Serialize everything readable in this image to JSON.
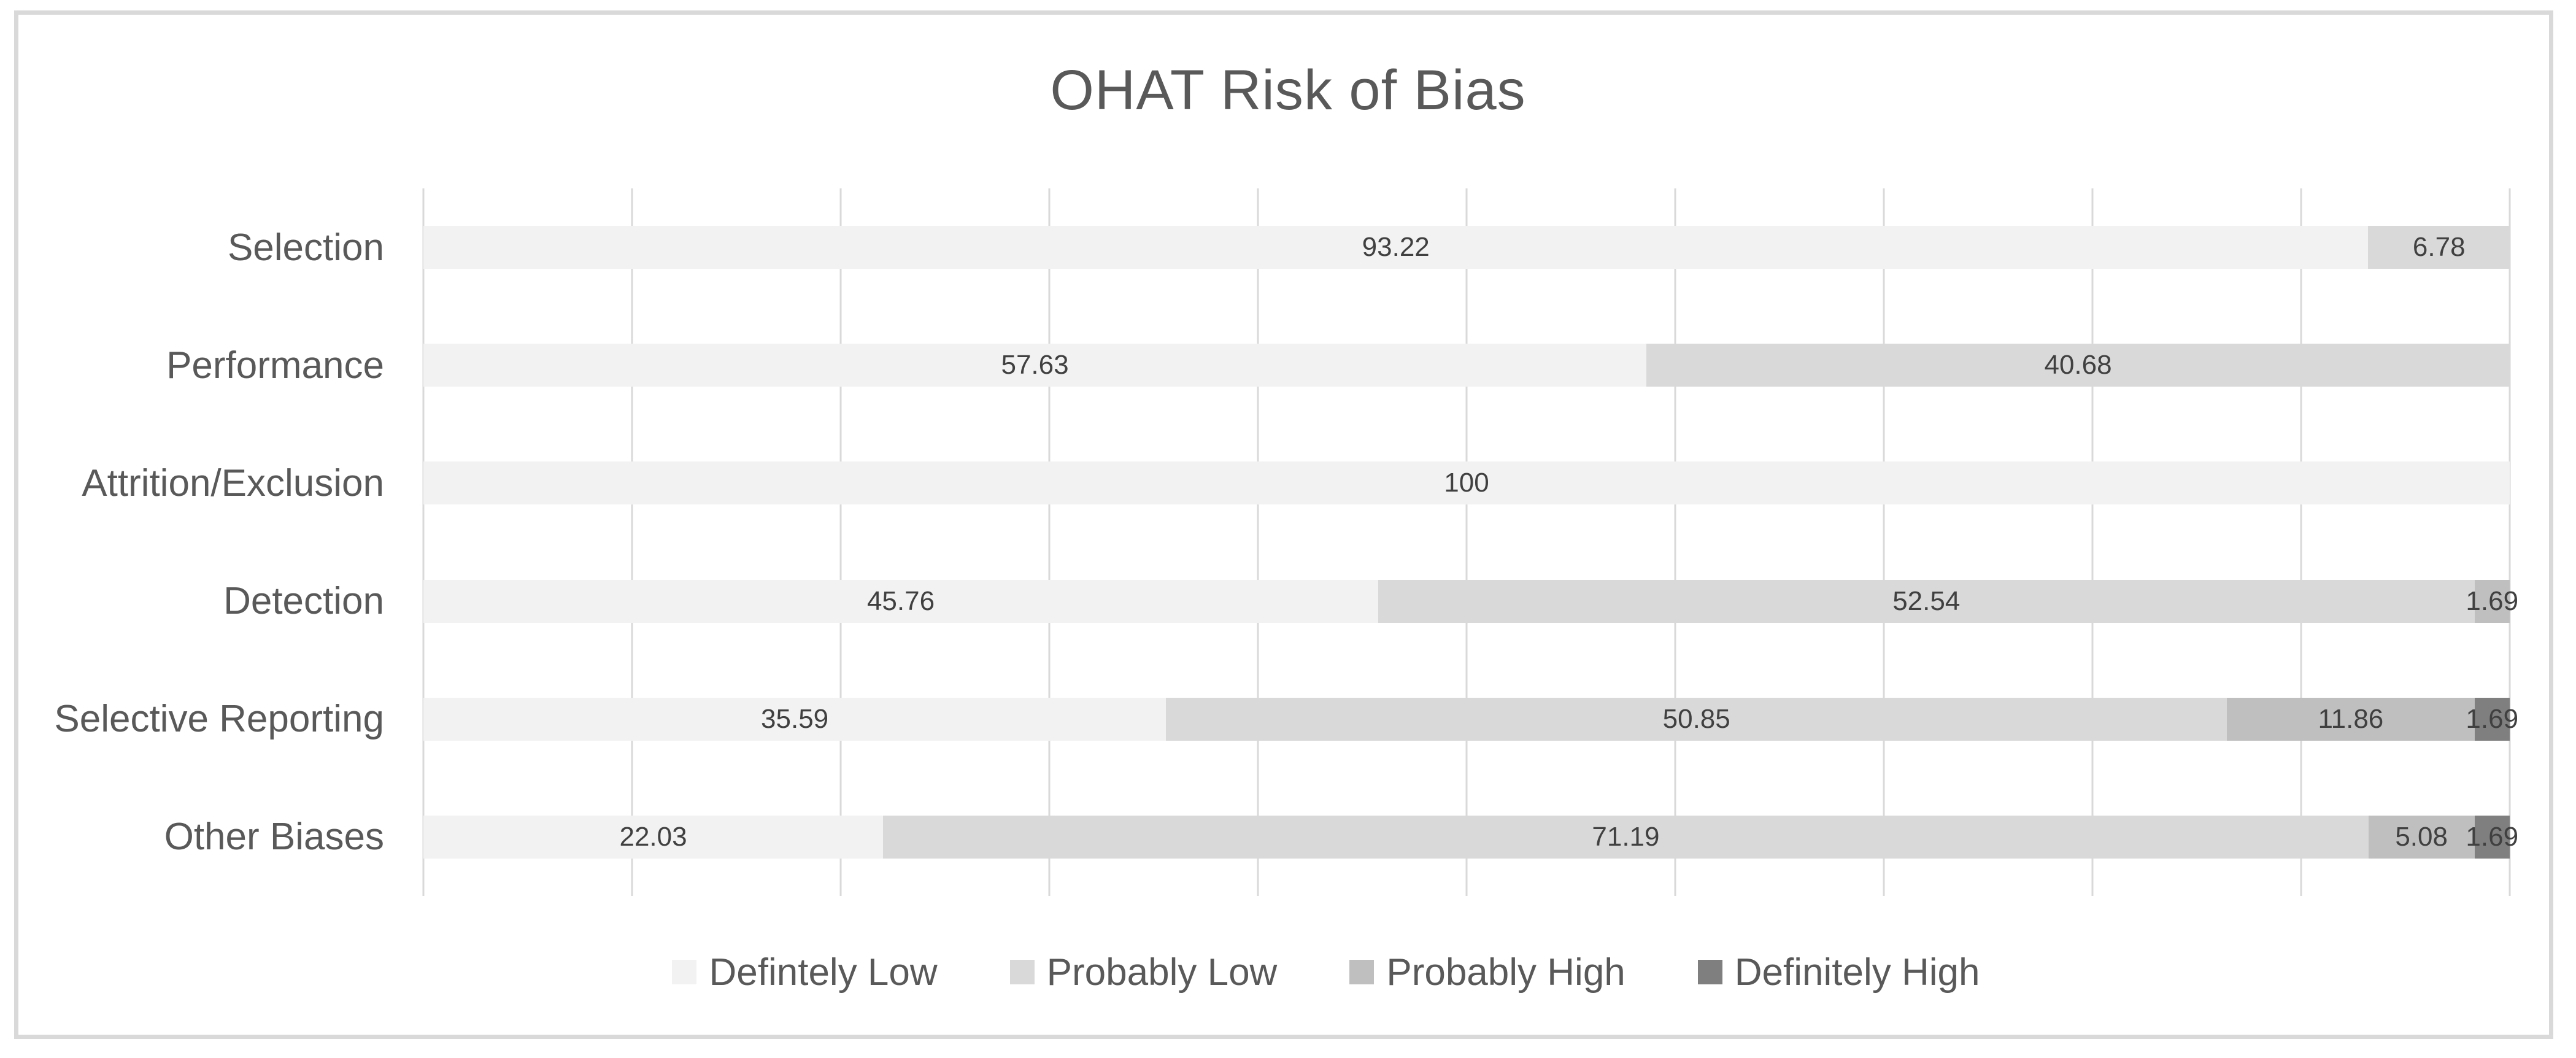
{
  "title": "OHAT Risk of Bias",
  "palette": {
    "definitely_low": "#f2f2f2",
    "probably_low": "#d9d9d9",
    "probably_high": "#bfbfbf",
    "definitely_high": "#7f7f7f",
    "gridline": "#d9d9d9",
    "frame_border": "#d9d9d9",
    "title_text": "#595959",
    "axis_text": "#595959",
    "data_label_text": "#404040"
  },
  "chart_data": {
    "type": "bar",
    "variant": "horizontal-stacked-100",
    "title": "OHAT Risk of Bias",
    "xlabel": "",
    "ylabel": "",
    "xlim": [
      0,
      100
    ],
    "gridline_interval": 10,
    "grid": true,
    "axis_tick_labels_shown": false,
    "legend_position": "bottom",
    "categories": [
      "Selection",
      "Performance",
      "Attrition/Exclusion",
      "Detection",
      "Selective Reporting",
      "Other Biases"
    ],
    "series": [
      {
        "name": "Defintely Low",
        "color": "#f2f2f2",
        "values": [
          93.22,
          57.63,
          100,
          45.76,
          35.59,
          22.03
        ]
      },
      {
        "name": "Probably Low",
        "color": "#d9d9d9",
        "values": [
          6.78,
          40.68,
          0,
          52.54,
          50.85,
          71.19
        ]
      },
      {
        "name": "Probably High",
        "color": "#bfbfbf",
        "values": [
          0,
          0,
          0,
          1.69,
          11.86,
          5.08
        ]
      },
      {
        "name": "Definitely High",
        "color": "#7f7f7f",
        "values": [
          0,
          0,
          0,
          0,
          1.69,
          1.69
        ]
      }
    ],
    "data_labels": [
      [
        "93.22",
        "6.78",
        "",
        ""
      ],
      [
        "57.63",
        "40.68",
        "",
        ""
      ],
      [
        "100",
        "",
        "",
        ""
      ],
      [
        "45.76",
        "52.54",
        "1.69",
        ""
      ],
      [
        "35.59",
        "50.85",
        "11.86",
        "1.69"
      ],
      [
        "22.03",
        "71.19",
        "5.08",
        "1.69"
      ]
    ]
  },
  "legend": {
    "items": [
      {
        "label": "Defintely Low",
        "color": "#f2f2f2"
      },
      {
        "label": "Probably Low",
        "color": "#d9d9d9"
      },
      {
        "label": "Probably High",
        "color": "#bfbfbf"
      },
      {
        "label": "Definitely High",
        "color": "#7f7f7f"
      }
    ]
  }
}
